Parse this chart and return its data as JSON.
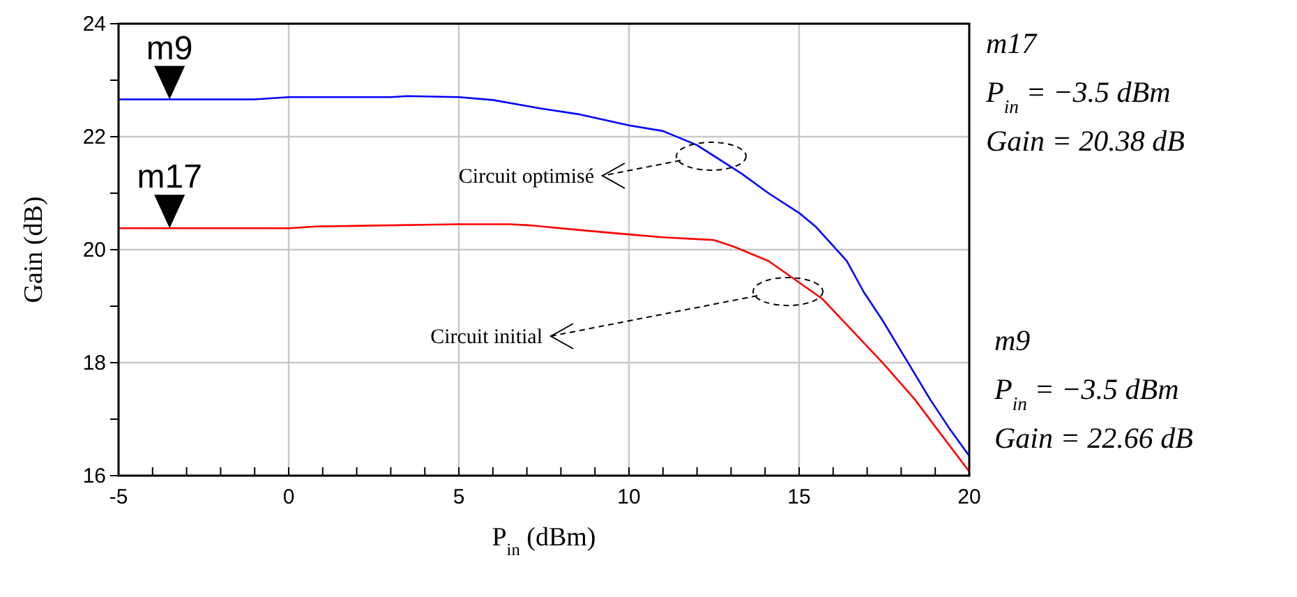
{
  "chart_data": {
    "type": "line",
    "xlabel": "P$_{in}$ (dBm)",
    "ylabel": "Gain (dB)",
    "xlim": [
      -5,
      20
    ],
    "ylim": [
      16,
      24
    ],
    "xticks": [
      -5,
      {
        "value": -4,
        "label": null
      },
      {
        "value": -3,
        "label": null
      },
      {
        "value": -2,
        "label": null
      },
      {
        "value": -1,
        "label": null
      },
      0,
      {
        "value": 1,
        "label": null
      },
      {
        "value": 2,
        "label": null
      },
      {
        "value": 3,
        "label": null
      },
      {
        "value": 4,
        "label": null
      },
      5,
      {
        "value": 6,
        "label": null
      },
      {
        "value": 7,
        "label": null
      },
      {
        "value": 8,
        "label": null
      },
      {
        "value": 9,
        "label": null
      },
      10,
      {
        "value": 11,
        "label": null
      },
      {
        "value": 12,
        "label": null
      },
      {
        "value": 13,
        "label": null
      },
      {
        "value": 14,
        "label": null
      },
      15,
      {
        "value": 16,
        "label": null
      },
      {
        "value": 17,
        "label": null
      },
      {
        "value": 18,
        "label": null
      },
      {
        "value": 19,
        "label": null
      },
      20
    ],
    "yticks": [
      16,
      {
        "value": 17,
        "label": null
      },
      18,
      {
        "value": 19,
        "label": null
      },
      20,
      {
        "value": 21,
        "label": null
      },
      22,
      {
        "value": 23,
        "label": null
      },
      24
    ],
    "grid": true,
    "marker": "none",
    "line_style": "solid",
    "series": [
      {
        "color": "#0000ff",
        "x": [
          -5,
          -1,
          0,
          3,
          3.5,
          5,
          6,
          7.4,
          8.5,
          10,
          11,
          12,
          13.3,
          14.1,
          15,
          15.5,
          16.4,
          16.9,
          17.45,
          18,
          18.85,
          19.4,
          20
        ],
        "values": [
          22.66,
          22.66,
          22.7,
          22.7,
          22.72,
          22.7,
          22.65,
          22.5,
          22.4,
          22.2,
          22.1,
          21.85,
          21.35,
          21,
          20.65,
          20.4,
          19.8,
          19.25,
          18.75,
          18.2,
          17.35,
          16.85,
          16.35
        ]
      },
      {
        "color": "#ff0000",
        "x": [
          -5,
          0,
          0.8,
          5,
          6.5,
          7.1,
          8.5,
          10,
          11,
          12.5,
          13.1,
          14.1,
          15,
          15.7,
          16.4,
          17.45,
          18.4,
          18.96,
          20
        ],
        "values": [
          20.38,
          20.38,
          20.41,
          20.45,
          20.45,
          20.43,
          20.35,
          20.27,
          20.22,
          20.17,
          20.05,
          19.8,
          19.42,
          19.12,
          18.67,
          18,
          17.35,
          16.9,
          16.07
        ]
      }
    ],
    "annotations": [
      {
        "text": "m9",
        "x": -3.5,
        "y": 22.66
      },
      {
        "text": "m17",
        "x": -3.5,
        "y": 20.38
      },
      "Circuit optimisé",
      "Circuit initial",
      "m17",
      "P$_{in}$ = −3.5  dBm",
      "Gain = 20.38  dB",
      "m9",
      "P$_{in}$ = −3.5  dBm",
      "Gain = 22.66  dB"
    ]
  }
}
